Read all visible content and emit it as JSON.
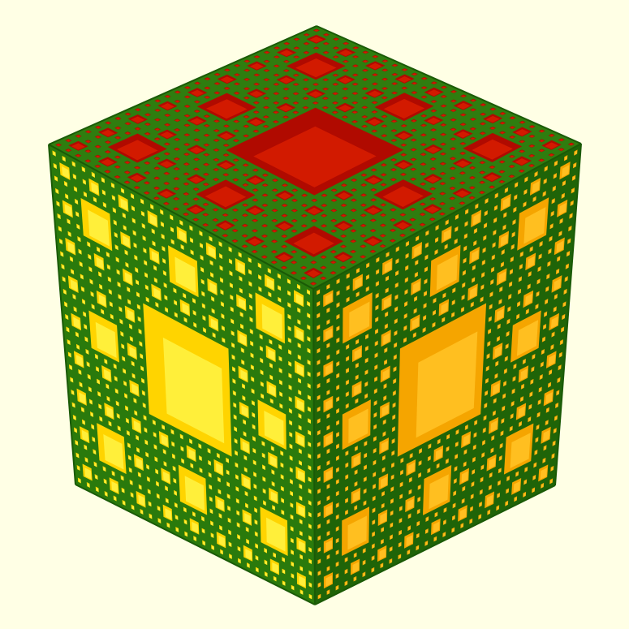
{
  "scene": {
    "subject": "menger-sponge",
    "colors": {
      "background": "#ffffe5",
      "face_green_top": "#2f7d0f",
      "face_green_left": "#2a7a0c",
      "face_green_right": "#1f6408",
      "hole_top": "#b00a00",
      "hole_top_inner": "#d21a00",
      "hole_left": "#ffd400",
      "hole_left_inner": "#ffef3a",
      "hole_right": "#f5a500",
      "hole_right_inner": "#ffbf20",
      "edge": "#1a5a06"
    }
  }
}
